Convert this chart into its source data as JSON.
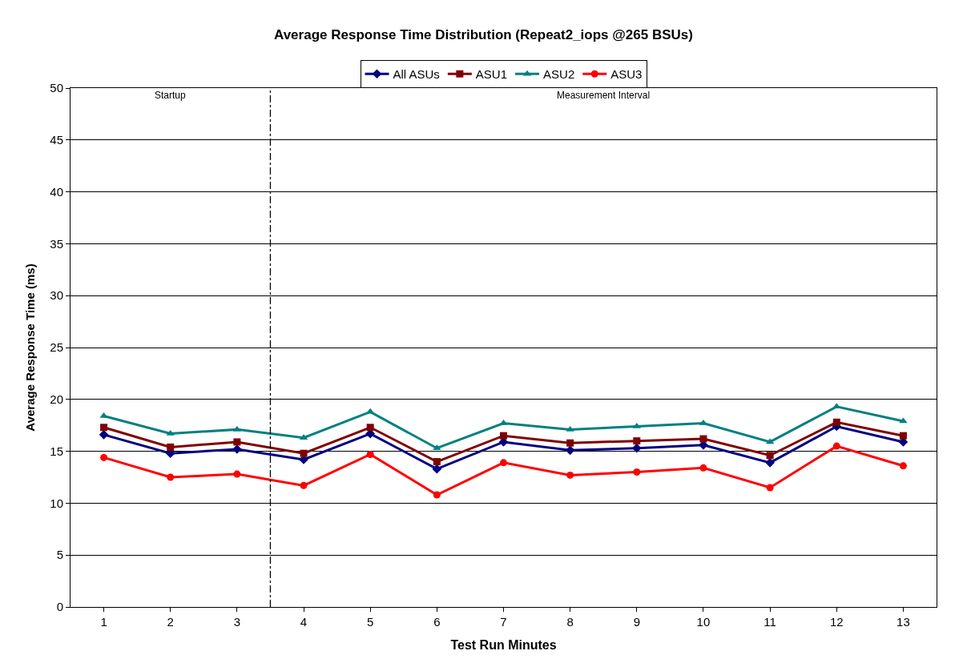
{
  "chart_data": {
    "type": "line",
    "title": "Average Response Time Distribution (Repeat2_iops @265 BSUs)",
    "xlabel": "Test Run Minutes",
    "ylabel": "Average Response Time (ms)",
    "x": [
      1,
      2,
      3,
      4,
      5,
      6,
      7,
      8,
      9,
      10,
      11,
      12,
      13
    ],
    "xlim": [
      0.5,
      13.5
    ],
    "xticks": [
      1,
      2,
      3,
      4,
      5,
      6,
      7,
      8,
      9,
      10,
      11,
      12,
      13
    ],
    "ylim": [
      0,
      50
    ],
    "yticks": [
      0,
      5,
      10,
      15,
      20,
      25,
      30,
      35,
      40,
      45,
      50
    ],
    "grid": "y",
    "legend": "top",
    "series": [
      {
        "name": "All ASUs",
        "color": "#000080",
        "marker": "diamond",
        "values": [
          16.6,
          14.8,
          15.2,
          14.2,
          16.7,
          13.3,
          15.9,
          15.1,
          15.3,
          15.6,
          13.9,
          17.4,
          15.9
        ]
      },
      {
        "name": "ASU1",
        "color": "#800000",
        "marker": "square",
        "values": [
          17.3,
          15.4,
          15.9,
          14.8,
          17.3,
          14.0,
          16.5,
          15.8,
          16.0,
          16.2,
          14.6,
          17.8,
          16.5
        ]
      },
      {
        "name": "ASU2",
        "color": "#008080",
        "marker": "triangle",
        "values": [
          18.4,
          16.7,
          17.1,
          16.3,
          18.8,
          15.3,
          17.7,
          17.1,
          17.4,
          17.7,
          15.9,
          19.3,
          17.9
        ]
      },
      {
        "name": "ASU3",
        "color": "#ff0000",
        "marker": "circle",
        "values": [
          14.4,
          12.5,
          12.8,
          11.7,
          14.7,
          10.8,
          13.9,
          12.7,
          13.0,
          13.4,
          11.5,
          15.5,
          13.6
        ]
      }
    ],
    "ref_lines": [
      {
        "axis": "x",
        "value": 3.5,
        "color": "#000000",
        "line_style": "dashdot"
      }
    ],
    "annotations": [
      "Startup",
      "Measurement Interval"
    ]
  }
}
